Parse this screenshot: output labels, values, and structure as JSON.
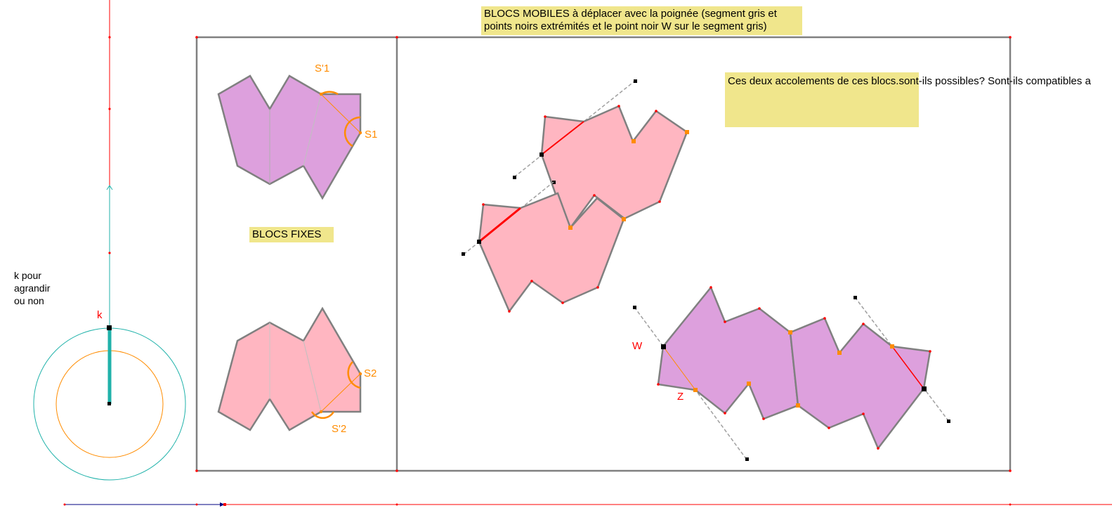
{
  "notes": {
    "mobile_line1": "BLOCS MOBILES à déplacer avec la poignée (segment gris et",
    "mobile_line2": "points noirs extrémités et le point noir W sur le segment gris)",
    "fixed": "BLOCS FIXES",
    "question": "Ces deux accolements de ces blocs.sont-ils possibles? Sont-ils compatibles a"
  },
  "slider": {
    "line1": "k pour",
    "line2": "agrandir",
    "line3": "ou non",
    "k_label": "k"
  },
  "labels": {
    "s1p": "S'1",
    "s1": "S1",
    "s2": "S2",
    "s2p": "S'2",
    "w": "W",
    "z": "Z"
  },
  "colors": {
    "violet": "#dda0dd",
    "pink": "#ffb6c1",
    "orange": "#ff8c00",
    "red": "#ff0000",
    "teal": "#20b2aa",
    "note": "#f0e68c"
  }
}
